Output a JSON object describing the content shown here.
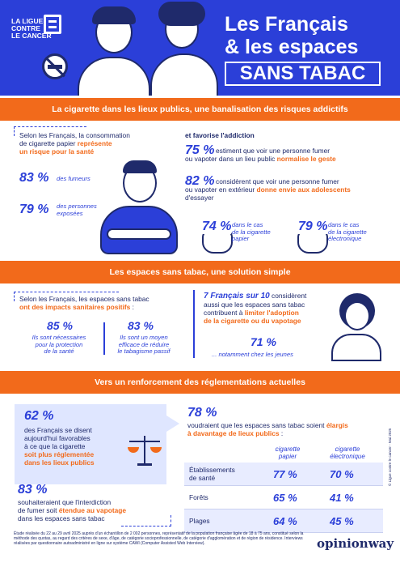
{
  "header": {
    "logo_line1": "LA LIGUE",
    "logo_line2": "CONTRE",
    "logo_line3": "LE CANCER",
    "title_line1": "Les Français",
    "title_line2": "& les espaces",
    "title_line3": "SANS TABAC"
  },
  "section1": {
    "bar": "La cigarette dans les lieux publics, une banalisation des risques addictifs",
    "intro_l1": "Selon les Français, la consommation",
    "intro_l2a": "de cigarette papier ",
    "intro_l2b": "représente",
    "intro_l3": "un risque pour la santé",
    "stat1_value": "83 %",
    "stat1_label": "des fumeurs",
    "stat2_value": "79 %",
    "stat2_label_l1": "des personnes",
    "stat2_label_l2": "exposées",
    "addiction": "et favorise l'addiction",
    "stat3_value": "75 %",
    "stat3_text_l1": " estiment que voir une personne fumer",
    "stat3_text_l2a": "ou vapoter dans un lieu public ",
    "stat3_text_l2b": "normalise le geste",
    "stat4_value": "82 %",
    "stat4_text_l1": " considèrent que voir une personne fumer",
    "stat4_text_l2a": "ou vapoter en extérieur ",
    "stat4_text_l2b": "donne envie aux adolescents",
    "stat4_text_l3": "d'essayer",
    "stat5_value": "74 %",
    "stat5_label_l1": "dans le cas",
    "stat5_label_l2": "de la cigarette",
    "stat5_label_l3": "papier",
    "stat6_value": "79 %",
    "stat6_label_l1": "dans le cas",
    "stat6_label_l2": "de la cigarette",
    "stat6_label_l3": "électronique"
  },
  "section2": {
    "bar": "Les espaces sans tabac, une solution simple",
    "intro_l1": "Selon les Français, les espaces sans tabac",
    "intro_l2": "ont des impacts sanitaires positifs",
    "intro_l2_tail": " :",
    "stat1_value": "85 %",
    "stat1_l1": "Ils sont nécessaires",
    "stat1_l2": "pour la protection",
    "stat1_l3": "de la santé",
    "stat2_value": "83 %",
    "stat2_l1": "Ils sont un moyen",
    "stat2_l2": "efficace de réduire",
    "stat2_l3": "le tabagisme passif",
    "right_head": "7 Français sur 10",
    "right_l1_tail": " considèrent",
    "right_l2": "aussi que les espaces sans tabac",
    "right_l3a": "contribuent à ",
    "right_l3b": "limiter l'adoption",
    "right_l4": "de la cigarette ou du vapotage",
    "stat3_value": "71 %",
    "stat3_label": "... notamment chez les jeunes"
  },
  "section3": {
    "bar": "Vers un renforcement des réglementations actuelles",
    "stat1_value": "62 %",
    "stat1_l1": "des Français se disent",
    "stat1_l2": "aujourd'hui favorables",
    "stat1_l3": "à ce que la cigarette",
    "stat1_l4": "soit plus réglementée",
    "stat1_l5": "dans les lieux publics",
    "stat2_value": "83 %",
    "stat2_l1": "souhaiteraient que l'interdiction",
    "stat2_l2a": "de fumer soit ",
    "stat2_l2b": "étendue au vapotage",
    "stat2_l3": "dans les espaces sans tabac",
    "stat3_value": "78 %",
    "stat3_l1a": "voudraient que les espaces sans tabac soient ",
    "stat3_l1b": "élargis",
    "stat3_l2": "à davantage de lieux publics",
    "stat3_l2_tail": " :",
    "col1_l1": "cigarette",
    "col1_l2": "papier",
    "col2_l1": "cigarette",
    "col2_l2": "électronique",
    "rows": [
      {
        "label_l1": "Établissements",
        "label_l2": "de santé",
        "v1": "77 %",
        "v2": "70 %"
      },
      {
        "label_l1": "Forêts",
        "label_l2": "",
        "v1": "65 %",
        "v2": "41 %"
      },
      {
        "label_l1": "Plages",
        "label_l2": "",
        "v1": "64 %",
        "v2": "45 %"
      }
    ]
  },
  "footer": {
    "text": "Étude réalisée du 22 au 29 avril 2025 auprès d'un échantillon de 2 002 personnes, représentatif de la population française âgée de 18 à 75 ans, constitué selon la méthode des quotas, au regard des critères de sexe, d'âge, de catégorie socioprofessionnelle, de catégorie d'agglomération et de région de résidence. Interviews réalisées par questionnaire autoadministré en ligne sur système CAWI (Computer Assisted Web Interview).",
    "brand": "opinionway",
    "side_credit": "© Ligue contre le cancer - Mai 2025"
  }
}
